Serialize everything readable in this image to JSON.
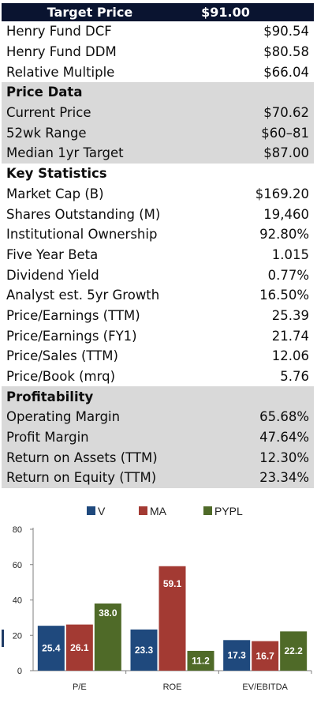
{
  "header": {
    "label": "Target Price",
    "value": "$91.00"
  },
  "valuation": [
    {
      "label": "Henry Fund DCF",
      "value": "$90.54"
    },
    {
      "label": "Henry Fund DDM",
      "value": "$80.58"
    },
    {
      "label": "Relative Multiple",
      "value": "$66.04"
    }
  ],
  "sections": [
    {
      "title": "Price Data",
      "rows": [
        {
          "label": "Current Price",
          "value": "$70.62"
        },
        {
          "label": "52wk Range",
          "value": "$60–81"
        },
        {
          "label": "Median 1yr Target",
          "value": "$87.00"
        }
      ]
    },
    {
      "title": "Key Statistics",
      "rows": [
        {
          "label": "Market Cap (B)",
          "value": "$169.20"
        },
        {
          "label": "Shares Outstanding (M)",
          "value": "19,460"
        },
        {
          "label": "Institutional Ownership",
          "value": "92.80%"
        },
        {
          "label": "Five Year Beta",
          "value": "1.015"
        },
        {
          "label": "Dividend Yield",
          "value": "0.77%"
        },
        {
          "label": "Analyst est. 5yr Growth",
          "value": "16.50%"
        },
        {
          "label": "Price/Earnings (TTM)",
          "value": "25.39"
        },
        {
          "label": "Price/Earnings (FY1)",
          "value": "21.74"
        },
        {
          "label": "Price/Sales (TTM)",
          "value": "12.06"
        },
        {
          "label": "Price/Book (mrq)",
          "value": "5.76"
        }
      ]
    },
    {
      "title": "Profitability",
      "rows": [
        {
          "label": "Operating Margin",
          "value": "65.68%"
        },
        {
          "label": "Profit Margin",
          "value": "47.64%"
        },
        {
          "label": "Return on Assets (TTM)",
          "value": "12.30%"
        },
        {
          "label": "Return on Equity (TTM)",
          "value": "23.34%"
        }
      ]
    }
  ],
  "chart_data": {
    "type": "bar",
    "categories": [
      "P/E",
      "ROE",
      "EV/EBITDA"
    ],
    "series": [
      {
        "name": "V",
        "color": "#1f497d",
        "values": [
          25.4,
          23.3,
          17.3
        ]
      },
      {
        "name": "MA",
        "color": "#a33a33",
        "values": [
          26.1,
          59.1,
          16.7
        ]
      },
      {
        "name": "PYPL",
        "color": "#4f6a28",
        "values": [
          38.0,
          11.2,
          22.2
        ]
      }
    ],
    "yticks": [
      0,
      20,
      40,
      60,
      80
    ],
    "ylim": [
      0,
      80
    ],
    "legend": "top",
    "grid": false
  }
}
